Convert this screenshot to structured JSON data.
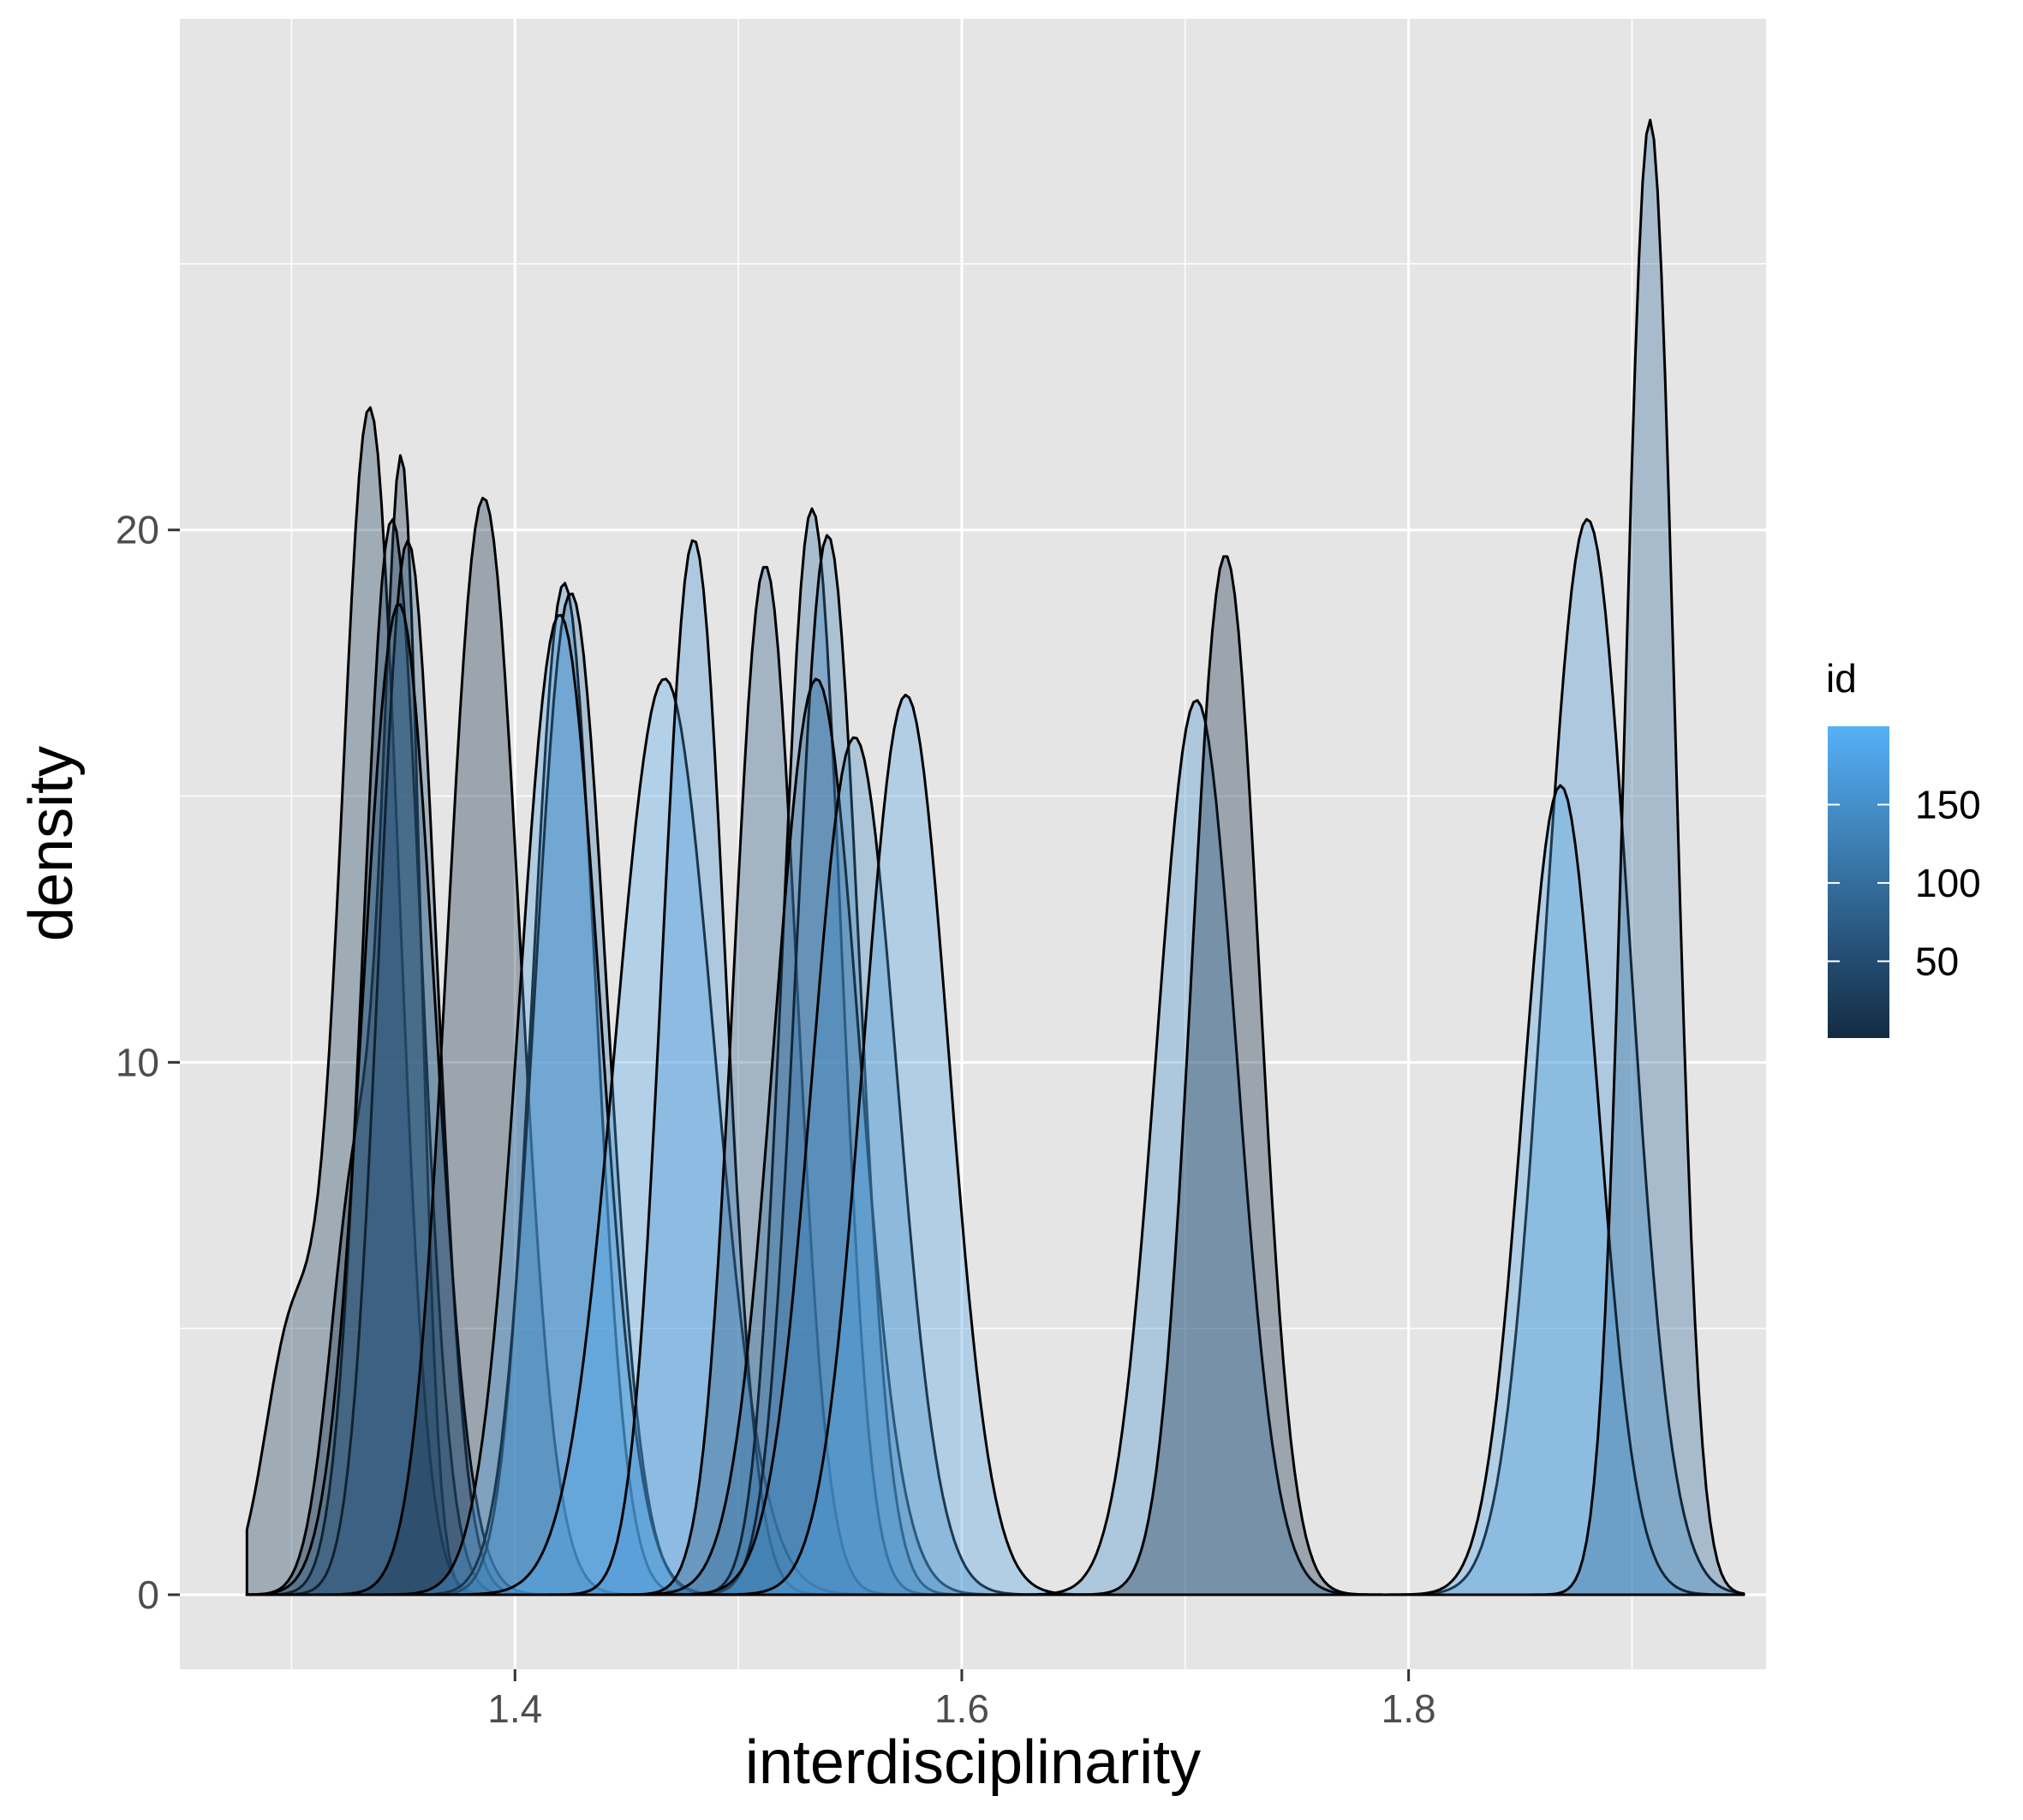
{
  "chart_data": {
    "type": "area",
    "subtype": "density",
    "xlabel": "interdisciplinarity",
    "ylabel": "density",
    "xlim": [
      1.25,
      1.96
    ],
    "ylim": [
      -1.4,
      29.6
    ],
    "x_ticks": [
      1.4,
      1.6,
      1.8
    ],
    "x_tick_labels": [
      "1.4",
      "1.6",
      "1.8"
    ],
    "y_ticks": [
      0,
      10,
      20
    ],
    "y_tick_labels": [
      "0",
      "10",
      "20"
    ],
    "grid": true,
    "background": "#e5e5e5",
    "legend": {
      "title": "id",
      "position": "right",
      "type": "colorbar",
      "range": [
        1,
        200
      ],
      "ticks": [
        50,
        100,
        150
      ],
      "tick_labels": [
        "50",
        "100",
        "150"
      ],
      "low_color": "#132b43",
      "high_color": "#56b1f7"
    },
    "fill_alpha": 0.35,
    "x_range": [
      1.28,
      1.95
    ],
    "series": [
      {
        "id": 30,
        "peaks": [
          {
            "mu": 1.335,
            "sd": 0.013,
            "w": 0.82
          },
          {
            "mu": 1.3,
            "sd": 0.012,
            "w": 0.18
          }
        ],
        "peak": 22.3
      },
      {
        "id": 10,
        "peaks": [
          {
            "mu": 1.35,
            "sd": 0.008,
            "w": 0.7
          },
          {
            "mu": 1.33,
            "sd": 0.012,
            "w": 0.3
          }
        ],
        "peak": 21.4
      },
      {
        "id": 40,
        "peaks": [
          {
            "mu": 1.345,
            "sd": 0.013,
            "w": 1
          }
        ],
        "peak": 20.2
      },
      {
        "id": 60,
        "peaks": [
          {
            "mu": 1.352,
            "sd": 0.013,
            "w": 1
          }
        ],
        "peak": 19.8
      },
      {
        "id": 80,
        "peaks": [
          {
            "mu": 1.348,
            "sd": 0.016,
            "w": 1
          }
        ],
        "peak": 18.6
      },
      {
        "id": 5,
        "peaks": [
          {
            "mu": 1.386,
            "sd": 0.016,
            "w": 1
          }
        ],
        "peak": 20.6
      },
      {
        "id": 150,
        "peaks": [
          {
            "mu": 1.422,
            "sd": 0.014,
            "w": 1
          }
        ],
        "peak": 19.0
      },
      {
        "id": 120,
        "peaks": [
          {
            "mu": 1.425,
            "sd": 0.016,
            "w": 1
          }
        ],
        "peak": 18.8
      },
      {
        "id": 170,
        "peaks": [
          {
            "mu": 1.42,
            "sd": 0.018,
            "w": 1
          }
        ],
        "peak": 18.4
      },
      {
        "id": 190,
        "peaks": [
          {
            "mu": 1.467,
            "sd": 0.022,
            "w": 1
          }
        ],
        "peak": 17.2
      },
      {
        "id": 160,
        "peaks": [
          {
            "mu": 1.48,
            "sd": 0.014,
            "w": 1
          }
        ],
        "peak": 19.8
      },
      {
        "id": 70,
        "peaks": [
          {
            "mu": 1.512,
            "sd": 0.014,
            "w": 1
          }
        ],
        "peak": 19.3
      },
      {
        "id": 110,
        "peaks": [
          {
            "mu": 1.533,
            "sd": 0.013,
            "w": 1
          }
        ],
        "peak": 20.4
      },
      {
        "id": 130,
        "peaks": [
          {
            "mu": 1.54,
            "sd": 0.014,
            "w": 1
          }
        ],
        "peak": 19.9
      },
      {
        "id": 100,
        "peaks": [
          {
            "mu": 1.535,
            "sd": 0.019,
            "w": 1
          }
        ],
        "peak": 17.2
      },
      {
        "id": 140,
        "peaks": [
          {
            "mu": 1.552,
            "sd": 0.019,
            "w": 1
          }
        ],
        "peak": 16.1
      },
      {
        "id": 180,
        "peaks": [
          {
            "mu": 1.575,
            "sd": 0.019,
            "w": 1
          }
        ],
        "peak": 16.9
      },
      {
        "id": 150,
        "peaks": [
          {
            "mu": 1.705,
            "sd": 0.018,
            "w": 1
          }
        ],
        "peak": 16.8
      },
      {
        "id": 5,
        "peaks": [
          {
            "mu": 1.718,
            "sd": 0.015,
            "w": 1
          }
        ],
        "peak": 19.5
      },
      {
        "id": 160,
        "peaks": [
          {
            "mu": 1.88,
            "sd": 0.019,
            "w": 1
          }
        ],
        "peak": 20.2
      },
      {
        "id": 180,
        "peaks": [
          {
            "mu": 1.868,
            "sd": 0.017,
            "w": 1
          }
        ],
        "peak": 15.2
      },
      {
        "id": 100,
        "peaks": [
          {
            "mu": 1.908,
            "sd": 0.011,
            "w": 1
          }
        ],
        "peak": 27.7
      }
    ]
  }
}
